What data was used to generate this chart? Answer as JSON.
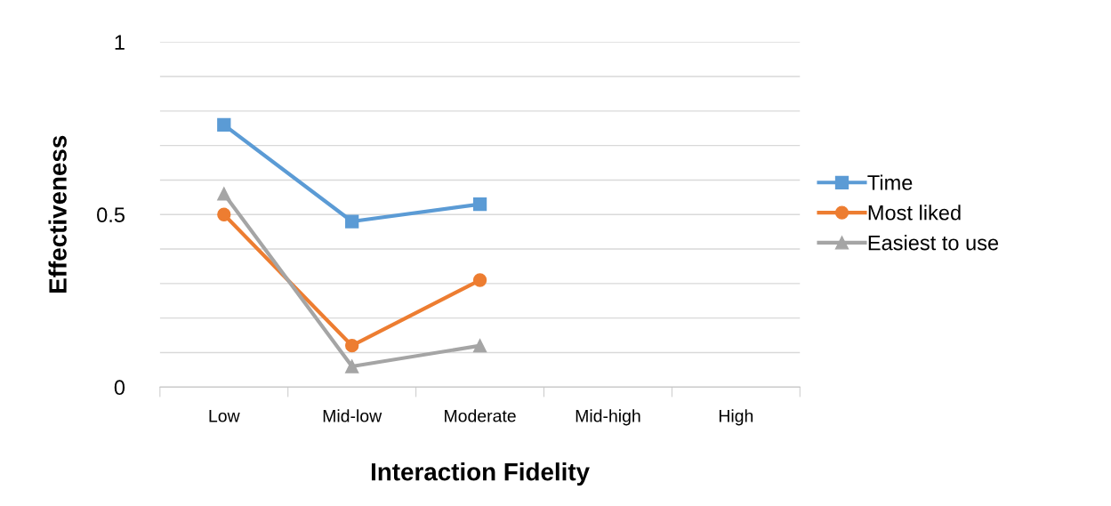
{
  "chart_data": {
    "type": "line",
    "xlabel": "Interaction Fidelity",
    "ylabel": "Effectiveness",
    "categories": [
      "Low",
      "Mid-low",
      "Moderate",
      "Mid-high",
      "High"
    ],
    "series": [
      {
        "name": "Time",
        "color": "#5b9bd5",
        "marker": "square",
        "values": [
          0.76,
          0.48,
          0.53,
          null,
          null
        ]
      },
      {
        "name": "Most liked",
        "color": "#ed7d31",
        "marker": "circle",
        "values": [
          0.5,
          0.12,
          0.31,
          null,
          null
        ]
      },
      {
        "name": "Easiest to use",
        "color": "#a5a5a5",
        "marker": "triangle",
        "values": [
          0.56,
          0.06,
          0.12,
          null,
          null
        ]
      }
    ],
    "ylim": [
      0,
      1
    ],
    "yticks": [
      0,
      {
        "value": 0.1,
        "label": null
      },
      {
        "value": 0.2,
        "label": null
      },
      {
        "value": 0.3,
        "label": null
      },
      {
        "value": 0.4,
        "label": null
      },
      0.5,
      {
        "value": 0.6,
        "label": null
      },
      {
        "value": 0.7,
        "label": null
      },
      {
        "value": 0.8,
        "label": null
      },
      {
        "value": 0.9,
        "label": null
      },
      1
    ],
    "grid": "y",
    "legend": "right",
    "line_style": "solid"
  }
}
